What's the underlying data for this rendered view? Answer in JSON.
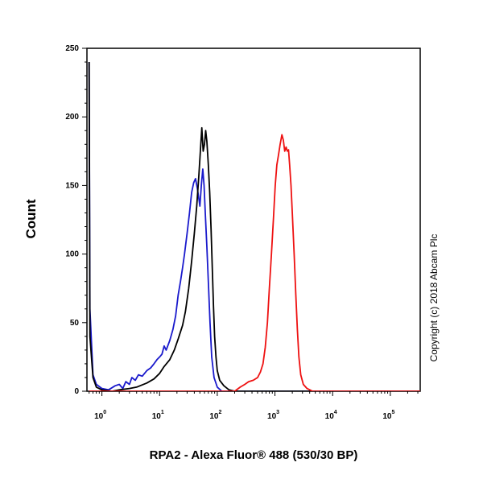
{
  "chart_data": {
    "type": "line",
    "title": "",
    "xlabel": "RPA2 - Alexa Fluor® 488 (530/30 BP)",
    "ylabel": "Count",
    "x_scale": "log",
    "xlim": [
      0.55,
      330000
    ],
    "ylim": [
      0,
      250
    ],
    "x_ticks": [
      {
        "base": "10",
        "exp": "0",
        "value": 1
      },
      {
        "base": "10",
        "exp": "1",
        "value": 10
      },
      {
        "base": "10",
        "exp": "2",
        "value": 100
      },
      {
        "base": "10",
        "exp": "3",
        "value": 1000
      },
      {
        "base": "10",
        "exp": "4",
        "value": 10000
      },
      {
        "base": "10",
        "exp": "5",
        "value": 100000
      }
    ],
    "y_ticks": [
      0,
      50,
      100,
      150,
      200,
      250
    ],
    "grid": false,
    "legend": "none",
    "annotation": "Copyright (c) 2018 Abcam Plc",
    "series": [
      {
        "color": "#1a1acc",
        "points": [
          [
            0.6,
            240
          ],
          [
            0.62,
            60
          ],
          [
            0.7,
            12
          ],
          [
            0.8,
            5
          ],
          [
            1.0,
            2
          ],
          [
            1.3,
            1
          ],
          [
            1.7,
            4
          ],
          [
            2.0,
            5
          ],
          [
            2.3,
            2
          ],
          [
            2.6,
            7
          ],
          [
            3.0,
            5
          ],
          [
            3.3,
            10
          ],
          [
            3.8,
            8
          ],
          [
            4.3,
            12
          ],
          [
            5.0,
            11
          ],
          [
            6.0,
            15
          ],
          [
            7.0,
            17
          ],
          [
            8.0,
            20
          ],
          [
            9.0,
            23
          ],
          [
            10.0,
            25
          ],
          [
            11.0,
            27
          ],
          [
            12.0,
            33
          ],
          [
            13.0,
            30
          ],
          [
            15.0,
            37
          ],
          [
            17.0,
            45
          ],
          [
            19.0,
            55
          ],
          [
            21.0,
            70
          ],
          [
            23.0,
            80
          ],
          [
            25.0,
            90
          ],
          [
            27.0,
            100
          ],
          [
            30.0,
            115
          ],
          [
            33.0,
            130
          ],
          [
            36.0,
            145
          ],
          [
            39.0,
            152
          ],
          [
            42.0,
            155
          ],
          [
            45.0,
            148
          ],
          [
            48.0,
            140
          ],
          [
            50.0,
            135
          ],
          [
            53.0,
            150
          ],
          [
            56.0,
            162
          ],
          [
            59.0,
            150
          ],
          [
            62.0,
            130
          ],
          [
            66.0,
            105
          ],
          [
            70.0,
            80
          ],
          [
            75.0,
            50
          ],
          [
            80.0,
            25
          ],
          [
            88.0,
            10
          ],
          [
            100.0,
            3
          ],
          [
            120.0,
            0
          ],
          [
            200.0,
            0
          ],
          [
            500000,
            0
          ]
        ]
      },
      {
        "color": "#000000",
        "points": [
          [
            0.6,
            240
          ],
          [
            0.62,
            40
          ],
          [
            0.7,
            10
          ],
          [
            0.8,
            3
          ],
          [
            1.0,
            1
          ],
          [
            1.5,
            0
          ],
          [
            2.0,
            1
          ],
          [
            3.0,
            2
          ],
          [
            4.0,
            3
          ],
          [
            6.0,
            6
          ],
          [
            8.0,
            9
          ],
          [
            10.0,
            13
          ],
          [
            12.0,
            18
          ],
          [
            15.0,
            23
          ],
          [
            18.0,
            30
          ],
          [
            21.0,
            38
          ],
          [
            25.0,
            48
          ],
          [
            28.0,
            58
          ],
          [
            32.0,
            75
          ],
          [
            36.0,
            95
          ],
          [
            40.0,
            115
          ],
          [
            44.0,
            135
          ],
          [
            48.0,
            158
          ],
          [
            51.0,
            175
          ],
          [
            54.0,
            192
          ],
          [
            57.0,
            175
          ],
          [
            60.0,
            180
          ],
          [
            63.0,
            190
          ],
          [
            66.0,
            182
          ],
          [
            70.0,
            165
          ],
          [
            74.0,
            145
          ],
          [
            78.0,
            118
          ],
          [
            82.0,
            90
          ],
          [
            86.0,
            62
          ],
          [
            90.0,
            40
          ],
          [
            95.0,
            25
          ],
          [
            100.0,
            15
          ],
          [
            110.0,
            8
          ],
          [
            130.0,
            4
          ],
          [
            160.0,
            1
          ],
          [
            200.0,
            0
          ],
          [
            500000,
            0
          ]
        ]
      },
      {
        "color": "#ee1111",
        "points": [
          [
            0.6,
            0
          ],
          [
            200.0,
            0
          ],
          [
            250.0,
            3
          ],
          [
            300.0,
            5
          ],
          [
            350.0,
            7
          ],
          [
            420.0,
            8
          ],
          [
            500.0,
            10
          ],
          [
            560.0,
            14
          ],
          [
            620.0,
            20
          ],
          [
            680.0,
            32
          ],
          [
            740.0,
            50
          ],
          [
            800.0,
            75
          ],
          [
            870.0,
            100
          ],
          [
            940.0,
            125
          ],
          [
            1010.0,
            150
          ],
          [
            1080.0,
            165
          ],
          [
            1150.0,
            172
          ],
          [
            1230.0,
            180
          ],
          [
            1320.0,
            187
          ],
          [
            1400.0,
            183
          ],
          [
            1480.0,
            175
          ],
          [
            1560.0,
            178
          ],
          [
            1640.0,
            175
          ],
          [
            1720.0,
            176
          ],
          [
            1800.0,
            165
          ],
          [
            1900.0,
            150
          ],
          [
            2000.0,
            130
          ],
          [
            2150.0,
            100
          ],
          [
            2300.0,
            70
          ],
          [
            2450.0,
            45
          ],
          [
            2600.0,
            25
          ],
          [
            2800.0,
            12
          ],
          [
            3100.0,
            5
          ],
          [
            3600.0,
            2
          ],
          [
            4500.0,
            0
          ],
          [
            500000,
            0
          ]
        ]
      }
    ]
  }
}
